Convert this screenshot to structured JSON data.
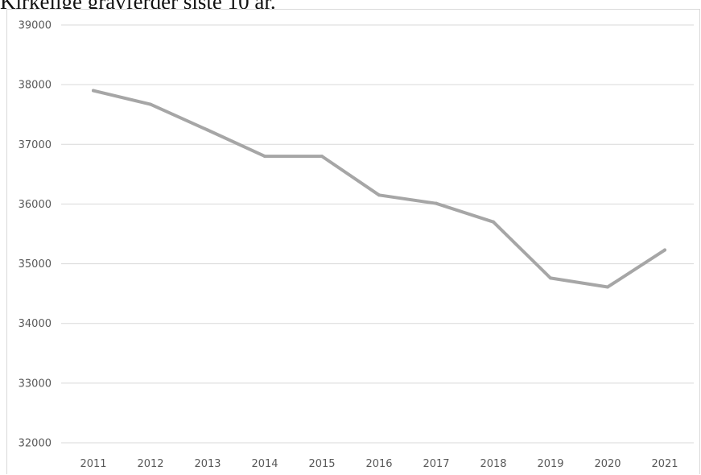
{
  "page": {
    "title": "Kirkelige gravferder siste 10 år."
  },
  "colors": {
    "line": "#a6a6a6",
    "gridline": "#d9d9d9",
    "tick_text": "#595959",
    "frame": "#d9d9d9"
  },
  "chart_data": {
    "type": "line",
    "title": "",
    "xlabel": "",
    "ylabel": "",
    "categories": [
      "2011",
      "2012",
      "2013",
      "2014",
      "2015",
      "2016",
      "2017",
      "2018",
      "2019",
      "2020",
      "2021"
    ],
    "series": [
      {
        "values": [
          37900,
          37670,
          37240,
          36800,
          36800,
          36150,
          36010,
          35700,
          34760,
          34610,
          35230
        ]
      }
    ],
    "ylim": [
      32000,
      39000
    ],
    "yticks": [
      32000,
      33000,
      34000,
      35000,
      36000,
      37000,
      38000,
      39000
    ],
    "ytick_labels": [
      "32000",
      "33000",
      "34000",
      "35000",
      "36000",
      "37000",
      "38000",
      "39000"
    ],
    "grid": "horizontal",
    "legend": "none"
  }
}
